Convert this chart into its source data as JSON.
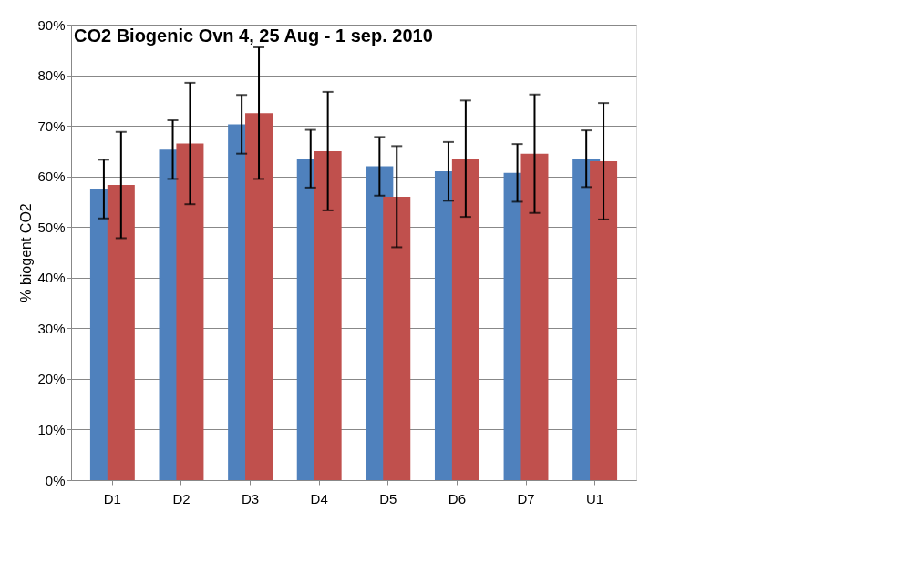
{
  "chart_data": {
    "type": "bar",
    "title": "CO2 Biogenic Ovn 4, 25 Aug - 1 sep. 2010",
    "ylabel": "% biogent CO2",
    "categories": [
      "D1",
      "D2",
      "D3",
      "D4",
      "D5",
      "D6",
      "D7",
      "U1"
    ],
    "series": [
      {
        "color": "#4f81bd",
        "values": [
          57.5,
          65.3,
          70.3,
          63.5,
          62.0,
          61.0,
          60.7,
          63.5
        ],
        "errors": [
          5.8,
          5.8,
          5.8,
          5.7,
          5.8,
          5.8,
          5.7,
          5.6
        ]
      },
      {
        "color": "#c0504d",
        "values": [
          58.3,
          66.5,
          72.5,
          65.0,
          56.0,
          63.5,
          64.5,
          63.0
        ],
        "errors": [
          10.5,
          12.0,
          13.0,
          11.7,
          10.0,
          11.5,
          11.7,
          11.5
        ]
      }
    ],
    "ylim": [
      0,
      90
    ],
    "yticks": [
      {
        "value": 0,
        "label": "0%"
      },
      {
        "value": 10,
        "label": "10%"
      },
      {
        "value": 20,
        "label": "20%"
      },
      {
        "value": 30,
        "label": "30%"
      },
      {
        "value": 40,
        "label": "40%"
      },
      {
        "value": 50,
        "label": "50%"
      },
      {
        "value": 60,
        "label": "60%"
      },
      {
        "value": 70,
        "label": "70%"
      },
      {
        "value": 80,
        "label": "80%"
      },
      {
        "value": 90,
        "label": "90%"
      }
    ],
    "grid": "y",
    "legend": false
  }
}
